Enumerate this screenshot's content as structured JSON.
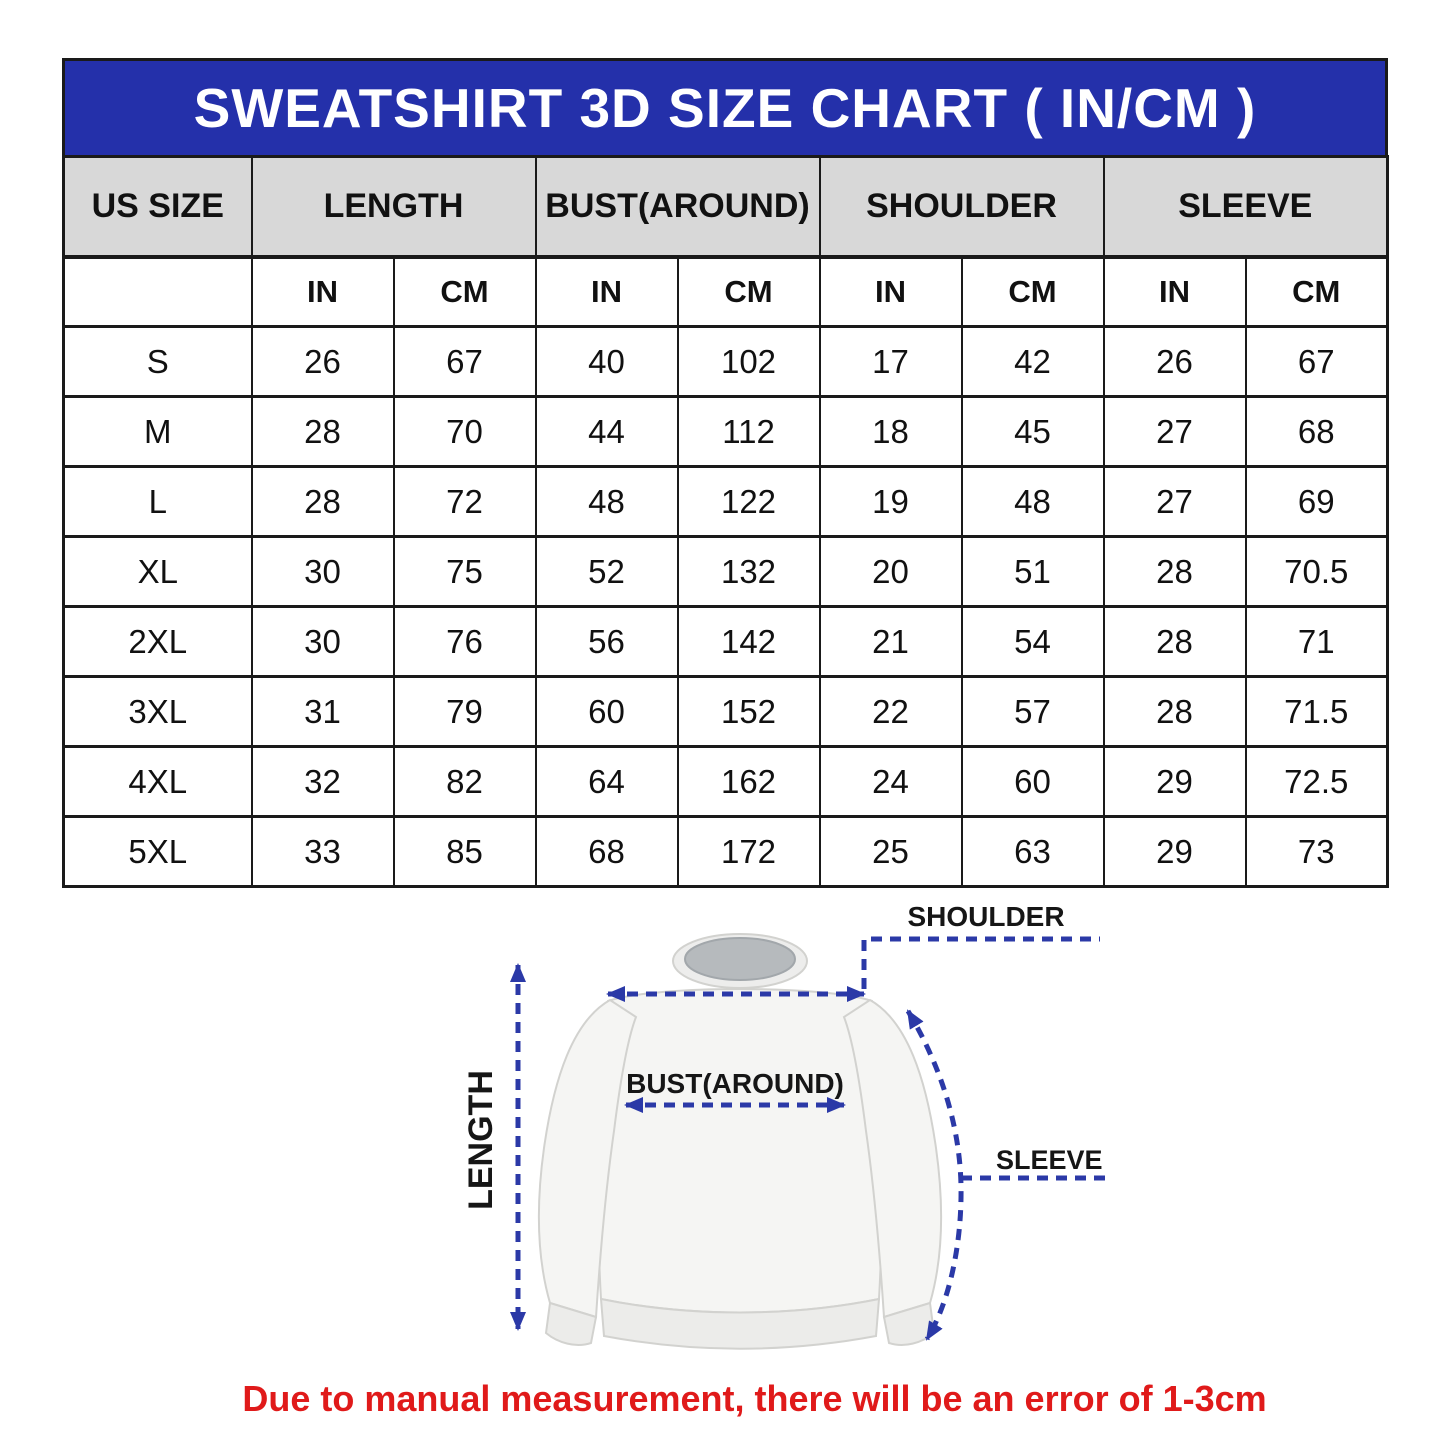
{
  "title": "SWEATSHIRT 3D SIZE CHART ( IN/CM )",
  "table": {
    "group_headers": [
      "US SIZE",
      "LENGTH",
      "BUST(AROUND)",
      "SHOULDER",
      "SLEEVE"
    ],
    "unit_headers": [
      "IN",
      "CM",
      "IN",
      "CM",
      "IN",
      "CM",
      "IN",
      "CM"
    ],
    "rows": [
      [
        "S",
        "26",
        "67",
        "40",
        "102",
        "17",
        "42",
        "26",
        "67"
      ],
      [
        "M",
        "28",
        "70",
        "44",
        "112",
        "18",
        "45",
        "27",
        "68"
      ],
      [
        "L",
        "28",
        "72",
        "48",
        "122",
        "19",
        "48",
        "27",
        "69"
      ],
      [
        "XL",
        "30",
        "75",
        "52",
        "132",
        "20",
        "51",
        "28",
        "70.5"
      ],
      [
        "2XL",
        "30",
        "76",
        "56",
        "142",
        "21",
        "54",
        "28",
        "71"
      ],
      [
        "3XL",
        "31",
        "79",
        "60",
        "152",
        "22",
        "57",
        "28",
        "71.5"
      ],
      [
        "4XL",
        "32",
        "82",
        "64",
        "162",
        "24",
        "60",
        "29",
        "72.5"
      ],
      [
        "5XL",
        "33",
        "85",
        "68",
        "172",
        "25",
        "63",
        "29",
        "73"
      ]
    ]
  },
  "diagram": {
    "labels": {
      "length": "LENGTH",
      "shoulder": "SHOULDER",
      "bust": "BUST(AROUND)",
      "sleeve": "SLEEVE"
    }
  },
  "footer_note": "Due to manual measurement, there will be an error of 1-3cm",
  "colors": {
    "title_bg": "#2430aa",
    "header_bg": "#d8d8d8",
    "note_red": "#e01a1a",
    "arrow_blue": "#2b39a7"
  }
}
